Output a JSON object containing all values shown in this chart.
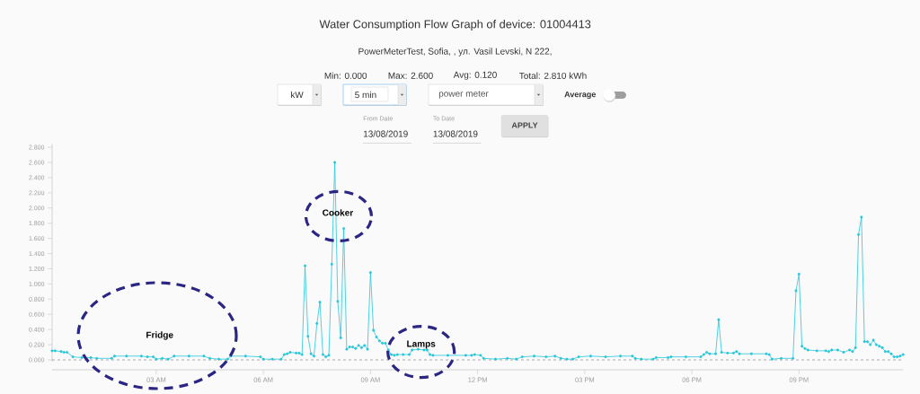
{
  "chart_data": {
    "type": "line",
    "title": "Water Consumption Flow Graph of device: 01004413",
    "subtitle": "PowerMeterTest, Sofia, , ул. Vasil Levski, N 222,",
    "x": [
      "2019-08-13T00:05",
      "2019-08-13T00:10",
      "2019-08-13T00:20",
      "2019-08-13T00:25",
      "2019-08-13T00:30",
      "2019-08-13T00:40",
      "2019-08-13T00:55",
      "2019-08-13T01:10",
      "2019-08-13T01:20",
      "2019-08-13T01:45",
      "2019-08-13T01:50",
      "2019-08-13T02:10",
      "2019-08-13T02:35",
      "2019-08-13T02:45",
      "2019-08-13T02:55",
      "2019-08-13T03:00",
      "2019-08-13T03:10",
      "2019-08-13T03:20",
      "2019-08-13T03:30",
      "2019-08-13T03:55",
      "2019-08-13T04:20",
      "2019-08-13T04:30",
      "2019-08-13T04:45",
      "2019-08-13T05:00",
      "2019-08-13T05:05",
      "2019-08-13T05:30",
      "2019-08-13T05:55",
      "2019-08-13T06:00",
      "2019-08-13T06:15",
      "2019-08-13T06:30",
      "2019-08-13T06:35",
      "2019-08-13T06:40",
      "2019-08-13T06:45",
      "2019-08-13T06:55",
      "2019-08-13T07:00",
      "2019-08-13T07:05",
      "2019-08-13T07:10",
      "2019-08-13T07:15",
      "2019-08-13T07:20",
      "2019-08-13T07:25",
      "2019-08-13T07:30",
      "2019-08-13T07:35",
      "2019-08-13T07:40",
      "2019-08-13T07:45",
      "2019-08-13T07:50",
      "2019-08-13T07:55",
      "2019-08-13T08:00",
      "2019-08-13T08:05",
      "2019-08-13T08:10",
      "2019-08-13T08:15",
      "2019-08-13T08:20",
      "2019-08-13T08:25",
      "2019-08-13T08:30",
      "2019-08-13T08:35",
      "2019-08-13T08:40",
      "2019-08-13T08:45",
      "2019-08-13T08:50",
      "2019-08-13T08:55",
      "2019-08-13T09:00",
      "2019-08-13T09:05",
      "2019-08-13T09:10",
      "2019-08-13T09:15",
      "2019-08-13T09:20",
      "2019-08-13T09:25",
      "2019-08-13T09:30",
      "2019-08-13T09:35",
      "2019-08-13T09:40",
      "2019-08-13T09:45",
      "2019-08-13T09:55",
      "2019-08-13T10:05",
      "2019-08-13T10:10",
      "2019-08-13T10:20",
      "2019-08-13T10:30",
      "2019-08-13T10:35",
      "2019-08-13T10:40",
      "2019-08-13T10:45",
      "2019-08-13T11:10",
      "2019-08-13T11:40",
      "2019-08-13T11:50",
      "2019-08-13T11:55",
      "2019-08-13T12:05",
      "2019-08-13T12:10",
      "2019-08-13T12:30",
      "2019-08-13T12:50",
      "2019-08-13T13:05",
      "2019-08-13T13:15",
      "2019-08-13T13:35",
      "2019-08-13T13:55",
      "2019-08-13T14:10",
      "2019-08-13T14:20",
      "2019-08-13T14:30",
      "2019-08-13T14:40",
      "2019-08-13T14:50",
      "2019-08-13T15:10",
      "2019-08-13T15:35",
      "2019-08-13T16:00",
      "2019-08-13T16:20",
      "2019-08-13T16:25",
      "2019-08-13T16:35",
      "2019-08-13T16:55",
      "2019-08-13T17:00",
      "2019-08-13T17:20",
      "2019-08-13T17:25",
      "2019-08-13T17:50",
      "2019-08-13T18:15",
      "2019-08-13T18:20",
      "2019-08-13T18:25",
      "2019-08-13T18:30",
      "2019-08-13T18:40",
      "2019-08-13T18:45",
      "2019-08-13T18:50",
      "2019-08-13T19:00",
      "2019-08-13T19:10",
      "2019-08-13T19:15",
      "2019-08-13T19:20",
      "2019-08-13T19:40",
      "2019-08-13T20:05",
      "2019-08-13T20:10",
      "2019-08-13T20:15",
      "2019-08-13T20:30",
      "2019-08-13T20:50",
      "2019-08-13T20:55",
      "2019-08-13T21:00",
      "2019-08-13T21:05",
      "2019-08-13T21:10",
      "2019-08-13T21:15",
      "2019-08-13T21:30",
      "2019-08-13T21:45",
      "2019-08-13T21:50",
      "2019-08-13T21:55",
      "2019-08-13T22:05",
      "2019-08-13T22:15",
      "2019-08-13T22:25",
      "2019-08-13T22:30",
      "2019-08-13T22:35",
      "2019-08-13T22:40",
      "2019-08-13T22:45",
      "2019-08-13T22:50",
      "2019-08-13T22:55",
      "2019-08-13T23:00",
      "2019-08-13T23:05",
      "2019-08-13T23:10",
      "2019-08-13T23:15",
      "2019-08-13T23:20",
      "2019-08-13T23:25",
      "2019-08-13T23:30",
      "2019-08-13T23:35",
      "2019-08-13T23:40",
      "2019-08-13T23:45",
      "2019-08-13T23:50",
      "2019-08-13T23:55"
    ],
    "values": [
      0.12,
      0.12,
      0.11,
      0.1,
      0.1,
      0.04,
      0.03,
      0.03,
      0.02,
      0.02,
      0.05,
      0.05,
      0.05,
      0.04,
      0.04,
      0.01,
      0.02,
      0.01,
      0.05,
      0.05,
      0.05,
      0.02,
      0.01,
      0.01,
      0.05,
      0.05,
      0.04,
      0.01,
      0.01,
      0.01,
      0.07,
      0.08,
      0.1,
      0.09,
      0.09,
      0.07,
      1.24,
      0.31,
      0.08,
      0.05,
      0.48,
      0.76,
      0.07,
      0.04,
      0.06,
      1.26,
      2.6,
      0.77,
      0.29,
      1.73,
      0.14,
      0.17,
      0.17,
      0.15,
      0.19,
      0.16,
      0.19,
      0.14,
      1.15,
      0.39,
      0.3,
      0.25,
      0.22,
      0.22,
      0.13,
      0.07,
      0.06,
      0.07,
      0.07,
      0.07,
      0.13,
      0.14,
      0.13,
      0.13,
      0.07,
      0.06,
      0.06,
      0.06,
      0.06,
      0.07,
      0.06,
      0.02,
      0.01,
      0.02,
      0.01,
      0.04,
      0.05,
      0.04,
      0.05,
      0.02,
      0.01,
      0.01,
      0.04,
      0.05,
      0.04,
      0.05,
      0.05,
      0.02,
      0.01,
      0.01,
      0.03,
      0.03,
      0.04,
      0.04,
      0.04,
      0.07,
      0.1,
      0.08,
      0.08,
      0.53,
      0.1,
      0.09,
      0.09,
      0.11,
      0.08,
      0.08,
      0.08,
      0.07,
      0.01,
      0.02,
      0.02,
      0.91,
      1.13,
      0.18,
      0.15,
      0.13,
      0.12,
      0.12,
      0.11,
      0.13,
      0.13,
      0.1,
      0.13,
      0.11,
      0.16,
      1.65,
      1.88,
      0.24,
      0.24,
      0.2,
      0.26,
      0.2,
      0.18,
      0.16,
      0.11,
      0.11,
      0.08,
      0.04,
      0.04,
      0.05,
      0.07
    ],
    "color": "#26c6da",
    "marker": "circle",
    "line_style": "solid",
    "xlim": [
      "2019-08-13T00:05",
      "2019-08-13T23:55"
    ],
    "ylim": [
      -0.13,
      2.84
    ],
    "xticks": [
      {
        "value": "2019-08-13T03:00",
        "label": "03 AM"
      },
      {
        "value": "2019-08-13T06:00",
        "label": "06 AM"
      },
      {
        "value": "2019-08-13T09:00",
        "label": "09 AM"
      },
      {
        "value": "2019-08-13T12:00",
        "label": "12 PM"
      },
      {
        "value": "2019-08-13T15:00",
        "label": "03 PM"
      },
      {
        "value": "2019-08-13T18:00",
        "label": "06 PM"
      },
      {
        "value": "2019-08-13T21:00",
        "label": "09 PM"
      }
    ],
    "yticks": [
      {
        "value": 0,
        "label": "0.000"
      },
      {
        "value": 0.2,
        "label": "0.200"
      },
      {
        "value": 0.4,
        "label": "0.400"
      },
      {
        "value": 0.6,
        "label": "0.600"
      },
      {
        "value": 0.8,
        "label": "0.800"
      },
      {
        "value": 1,
        "label": "1.000"
      },
      {
        "value": 1.2,
        "label": "1.200"
      },
      {
        "value": 1.4,
        "label": "1.400"
      },
      {
        "value": 1.6,
        "label": "1.600"
      },
      {
        "value": 1.8,
        "label": "1.800"
      },
      {
        "value": 2,
        "label": "2.000"
      },
      {
        "value": 2.2,
        "label": "2.200"
      },
      {
        "value": 2.4,
        "label": "2.400"
      },
      {
        "value": 2.6,
        "label": "2.600"
      },
      {
        "value": 2.8,
        "label": "2.800"
      }
    ],
    "ref_lines": [
      {
        "axis": "y",
        "value": 0,
        "color": "#888888",
        "line_style": "dashed"
      }
    ],
    "annotations": [
      "Min: 0.000",
      "Max: 2.600",
      "Avg: 0.120",
      "Total: 2.810 kWh",
      "kW",
      "5 min",
      "power meter",
      "Average",
      "From Date",
      "13/08/2019",
      "To Date",
      "13/08/2019",
      "APPLY",
      "Fridge",
      {
        "text": "Cooker",
        "x": "2019-08-13T08:05",
        "y": 1.94
      },
      {
        "text": "Lamps",
        "x": "2019-08-13T10:25",
        "y": 0.2
      }
    ]
  }
}
